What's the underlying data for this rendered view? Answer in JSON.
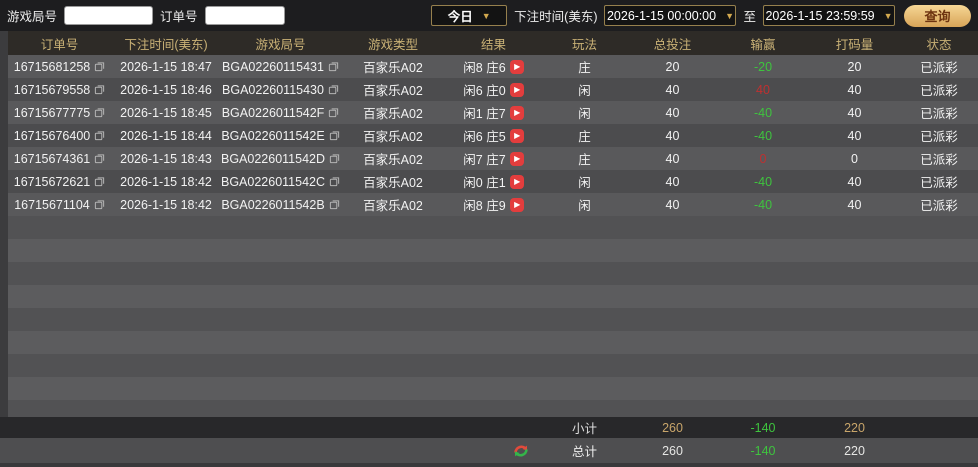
{
  "filters": {
    "game_round_label": "游戏局号",
    "order_label": "订单号",
    "range_value": "今日",
    "bet_time_label": "下注时间(美东)",
    "start_time": "2026-1-15 00:00:00",
    "to_label": "至",
    "end_time": "2026-1-15 23:59:59",
    "search_label": "查询",
    "dropdown_arrow": "▼"
  },
  "table": {
    "headers": [
      "订单号",
      "下注时间(美东)",
      "游戏局号",
      "游戏类型",
      "结果",
      "玩法",
      "总投注",
      "输赢",
      "打码量",
      "状态"
    ],
    "play_icon_glyph": "▶",
    "rows": [
      {
        "order_id": "16715681258",
        "bet_time": "2026-1-15 18:47",
        "round_id": "BGA02260115431",
        "game_type": "百家乐A02",
        "result": "闲8 庄6",
        "play": "庄",
        "total_bet": "20",
        "win_loss": "-20",
        "win_loss_color": "green",
        "turnover": "20",
        "status": "已派彩"
      },
      {
        "order_id": "16715679558",
        "bet_time": "2026-1-15 18:46",
        "round_id": "BGA02260115430",
        "game_type": "百家乐A02",
        "result": "闲6 庄0",
        "play": "闲",
        "total_bet": "40",
        "win_loss": "40",
        "win_loss_color": "red",
        "turnover": "40",
        "status": "已派彩"
      },
      {
        "order_id": "16715677775",
        "bet_time": "2026-1-15 18:45",
        "round_id": "BGA0226011542F",
        "game_type": "百家乐A02",
        "result": "闲1 庄7",
        "play": "闲",
        "total_bet": "40",
        "win_loss": "-40",
        "win_loss_color": "green",
        "turnover": "40",
        "status": "已派彩"
      },
      {
        "order_id": "16715676400",
        "bet_time": "2026-1-15 18:44",
        "round_id": "BGA0226011542E",
        "game_type": "百家乐A02",
        "result": "闲6 庄5",
        "play": "庄",
        "total_bet": "40",
        "win_loss": "-40",
        "win_loss_color": "green",
        "turnover": "40",
        "status": "已派彩"
      },
      {
        "order_id": "16715674361",
        "bet_time": "2026-1-15 18:43",
        "round_id": "BGA0226011542D",
        "game_type": "百家乐A02",
        "result": "闲7 庄7",
        "play": "庄",
        "total_bet": "40",
        "win_loss": "0",
        "win_loss_color": "red",
        "turnover": "0",
        "status": "已派彩"
      },
      {
        "order_id": "16715672621",
        "bet_time": "2026-1-15 18:42",
        "round_id": "BGA0226011542C",
        "game_type": "百家乐A02",
        "result": "闲0 庄1",
        "play": "闲",
        "total_bet": "40",
        "win_loss": "-40",
        "win_loss_color": "green",
        "turnover": "40",
        "status": "已派彩"
      },
      {
        "order_id": "16715671104",
        "bet_time": "2026-1-15 18:42",
        "round_id": "BGA0226011542B",
        "game_type": "百家乐A02",
        "result": "闲8 庄9",
        "play": "闲",
        "total_bet": "40",
        "win_loss": "-40",
        "win_loss_color": "green",
        "turnover": "40",
        "status": "已派彩"
      }
    ]
  },
  "footer": {
    "subtotal_label": "小计",
    "subtotal": {
      "total_bet": "260",
      "win_loss": "-140",
      "turnover": "220"
    },
    "total_label": "总计",
    "total": {
      "total_bet": "260",
      "win_loss": "-140",
      "turnover": "220"
    }
  },
  "colors": {
    "accent_gold": "#c9b176",
    "win_green": "#3ec43e",
    "loss_red": "#bf3030",
    "play_button_red": "#e33d3d",
    "search_button_gold": "#d8a458",
    "header_bg": "#2e2b27",
    "row_light": "#59595b",
    "row_dark": "#4c4c4e"
  }
}
